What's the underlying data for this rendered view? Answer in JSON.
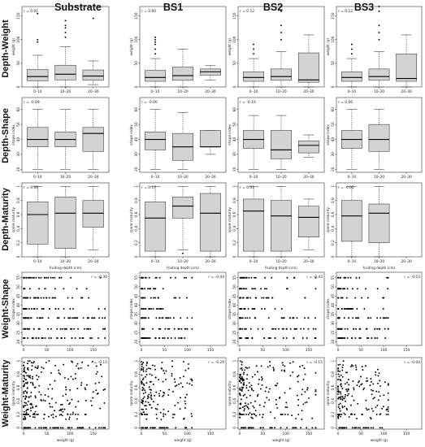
{
  "columns": [
    "Substrate",
    "BS1",
    "BS2",
    "BS3"
  ],
  "rows": [
    "Depth-Weight",
    "Depth-Shape",
    "Depth-Maturity",
    "Weight-Shape",
    "Weight-Maturity"
  ],
  "chart_data": [
    {
      "row": "Depth-Weight",
      "type": "box",
      "xlabel": "",
      "ylabel": "weight (g)",
      "categories": [
        "0–10",
        "10–20",
        "20–30"
      ],
      "yticks": [
        0,
        50,
        100,
        150
      ],
      "ylim": [
        0,
        170
      ],
      "panels": [
        {
          "column": "Substrate",
          "r_label": "r = 0.01",
          "boxes": [
            {
              "min": 0,
              "q1": 13,
              "median": 22,
              "q3": 37,
              "max": 67,
              "outliers": [
                95,
                100,
                155
              ]
            },
            {
              "min": 0,
              "q1": 15,
              "median": 27,
              "q3": 46,
              "max": 85,
              "outliers": [
                105,
                115,
                125,
                130,
                140
              ]
            },
            {
              "min": 5,
              "q1": 14,
              "median": 23,
              "q3": 36,
              "max": 55,
              "outliers": [
                145
              ]
            }
          ]
        },
        {
          "column": "BS1",
          "r_label": "r = 0.00",
          "boxes": [
            {
              "min": 0,
              "q1": 12,
              "median": 20,
              "q3": 35,
              "max": 60,
              "outliers": [
                70,
                80,
                90,
                95,
                100,
                105
              ]
            },
            {
              "min": 0,
              "q1": 14,
              "median": 24,
              "q3": 42,
              "max": 80,
              "outliers": []
            },
            {
              "min": 15,
              "q1": 25,
              "median": 32,
              "q3": 38,
              "max": 45,
              "outliers": []
            }
          ]
        },
        {
          "column": "BS2",
          "r_label": "r = 0.12",
          "boxes": [
            {
              "min": 0,
              "q1": 12,
              "median": 20,
              "q3": 32,
              "max": 60,
              "outliers": [
                70,
                80,
                90
              ]
            },
            {
              "min": 0,
              "q1": 14,
              "median": 22,
              "q3": 38,
              "max": 75,
              "outliers": [
                100,
                115,
                130,
                160,
                170
              ]
            },
            {
              "min": 0,
              "q1": 10,
              "median": 15,
              "q3": 72,
              "max": 110,
              "outliers": []
            }
          ]
        },
        {
          "column": "BS3",
          "r_label": "r = 0.12",
          "boxes": [
            {
              "min": 0,
              "q1": 12,
              "median": 20,
              "q3": 32,
              "max": 60,
              "outliers": [
                70,
                80,
                90
              ]
            },
            {
              "min": 0,
              "q1": 14,
              "median": 22,
              "q3": 38,
              "max": 75,
              "outliers": [
                100,
                115,
                130,
                160,
                170
              ]
            },
            {
              "min": 0,
              "q1": 12,
              "median": 18,
              "q3": 70,
              "max": 110,
              "outliers": []
            }
          ]
        }
      ]
    },
    {
      "row": "Depth-Shape",
      "type": "box",
      "xlabel": "",
      "ylabel": "shape index",
      "categories": [
        "0–10",
        "10–20",
        "20–30"
      ],
      "yticks": [
        20,
        30,
        40,
        50,
        60
      ],
      "ylim": [
        18,
        68
      ],
      "panels": [
        {
          "column": "Substrate",
          "r_label": "r = -0.09",
          "boxes": [
            {
              "min": 20,
              "q1": 35,
              "median": 40,
              "q3": 48,
              "max": 60,
              "outliers": []
            },
            {
              "min": 20,
              "q1": 35,
              "median": 40,
              "q3": 45,
              "max": 60,
              "outliers": []
            },
            {
              "min": 20,
              "q1": 32,
              "median": 44,
              "q3": 48,
              "max": 60,
              "outliers": []
            }
          ]
        },
        {
          "column": "BS1",
          "r_label": "r = -0.06",
          "boxes": [
            {
              "min": 20,
              "q1": 33,
              "median": 40,
              "q3": 45,
              "max": 60,
              "outliers": []
            },
            {
              "min": 20,
              "q1": 26,
              "median": 35,
              "q3": 44,
              "max": 58,
              "outliers": []
            },
            {
              "min": 30,
              "q1": 35,
              "median": 35,
              "q3": 46,
              "max": 46,
              "outliers": []
            }
          ]
        },
        {
          "column": "BS2",
          "r_label": "r = -0.10",
          "boxes": [
            {
              "min": 20,
              "q1": 34,
              "median": 40,
              "q3": 46,
              "max": 56,
              "outliers": []
            },
            {
              "min": 20,
              "q1": 27,
              "median": 33,
              "q3": 46,
              "max": 56,
              "outliers": []
            },
            {
              "min": 28,
              "q1": 31,
              "median": 36,
              "q3": 39,
              "max": 43,
              "outliers": []
            }
          ]
        },
        {
          "column": "BS3",
          "r_label": "r = 0.06",
          "boxes": [
            {
              "min": 20,
              "q1": 34,
              "median": 40,
              "q3": 46,
              "max": 60,
              "outliers": []
            },
            {
              "min": 20,
              "q1": 32,
              "median": 40,
              "q3": 50,
              "max": 60,
              "outliers": []
            }
          ]
        }
      ]
    },
    {
      "row": "Depth-Maturity",
      "type": "box",
      "xlabel": "fruiting depth (cm)",
      "ylabel": "spore maturity",
      "categories": [
        "0–10",
        "10–20",
        "20–30"
      ],
      "yticks": [
        0,
        0.2,
        0.4,
        0.6,
        0.8,
        1.0
      ],
      "ylim": [
        0,
        1.05
      ],
      "panels": [
        {
          "column": "Substrate",
          "r_label": "r = 0.06",
          "boxes": [
            {
              "min": 0,
              "q1": 0.18,
              "median": 0.6,
              "q3": 0.78,
              "max": 1.0,
              "outliers": []
            },
            {
              "min": 0,
              "q1": 0.12,
              "median": 0.62,
              "q3": 0.85,
              "max": 1.0,
              "outliers": []
            },
            {
              "min": 0.1,
              "q1": 0.42,
              "median": 0.62,
              "q3": 0.8,
              "max": 1.0,
              "outliers": []
            }
          ]
        },
        {
          "column": "BS1",
          "r_label": "r = 0.17",
          "boxes": [
            {
              "min": 0,
              "q1": 0.08,
              "median": 0.55,
              "q3": 0.78,
              "max": 1.0,
              "outliers": []
            },
            {
              "min": 0.1,
              "q1": 0.55,
              "median": 0.72,
              "q3": 0.85,
              "max": 1.0,
              "outliers": [
                0.05
              ]
            },
            {
              "min": 0,
              "q1": 0.08,
              "median": 0.62,
              "q3": 0.9,
              "max": 1.0,
              "outliers": []
            }
          ]
        },
        {
          "column": "BS2",
          "r_label": "r = 0.01",
          "boxes": [
            {
              "min": 0,
              "q1": 0.08,
              "median": 0.65,
              "q3": 0.82,
              "max": 1.0,
              "outliers": []
            },
            {
              "min": 0,
              "q1": 0.08,
              "median": 0.58,
              "q3": 0.8,
              "max": 1.0,
              "outliers": []
            },
            {
              "min": 0.1,
              "q1": 0.28,
              "median": 0.56,
              "q3": 0.72,
              "max": 0.82,
              "outliers": []
            }
          ]
        },
        {
          "column": "BS3",
          "r_label": "r = -0.02",
          "boxes": [
            {
              "min": 0,
              "q1": 0.22,
              "median": 0.58,
              "q3": 0.8,
              "max": 1.0,
              "outliers": []
            },
            {
              "min": 0,
              "q1": 0.2,
              "median": 0.62,
              "q3": 0.75,
              "max": 1.0,
              "outliers": []
            }
          ]
        }
      ]
    },
    {
      "row": "Weight-Shape",
      "type": "scatter",
      "xlabel": "",
      "ylabel": "shape index",
      "xticks": [
        0,
        50,
        100,
        150
      ],
      "xlim": [
        0,
        180
      ],
      "yticks": [
        20,
        25,
        30,
        35,
        40,
        45,
        50,
        55
      ],
      "ylim": [
        18,
        58
      ],
      "y_levels": [
        22,
        27,
        33,
        38,
        44,
        49,
        55
      ],
      "panels": [
        {
          "column": "Substrate",
          "r_label": "r = -0.30",
          "n": 220,
          "xmax": 175,
          "seed": 11
        },
        {
          "column": "BS1",
          "r_label": "r = -0.44",
          "n": 150,
          "xmax": 110,
          "seed": 23
        },
        {
          "column": "BS2",
          "r_label": "r = -0.43",
          "n": 170,
          "xmax": 165,
          "seed": 37
        },
        {
          "column": "BS3",
          "r_label": "r = -0.53",
          "n": 150,
          "xmax": 110,
          "seed": 41
        }
      ]
    },
    {
      "row": "Weight-Maturity",
      "type": "scatter",
      "xlabel": "weight (g)",
      "ylabel": "spore maturity",
      "xticks": [
        0,
        50,
        100,
        150
      ],
      "xlim": [
        0,
        180
      ],
      "yticks": [
        0,
        0.2,
        0.4,
        0.6,
        0.8,
        1.0
      ],
      "ylim": [
        -0.02,
        1.05
      ],
      "panels": [
        {
          "column": "Substrate",
          "r_label": "r = -0.15",
          "n": 300,
          "xmax": 175,
          "seed": 53
        },
        {
          "column": "BS1",
          "r_label": "r = -0.29",
          "n": 190,
          "xmax": 110,
          "seed": 61
        },
        {
          "column": "BS2",
          "r_label": "r = -0.15",
          "n": 230,
          "xmax": 165,
          "seed": 73
        },
        {
          "column": "BS3",
          "r_label": "r = -0.04",
          "n": 200,
          "xmax": 110,
          "seed": 89
        }
      ]
    }
  ]
}
